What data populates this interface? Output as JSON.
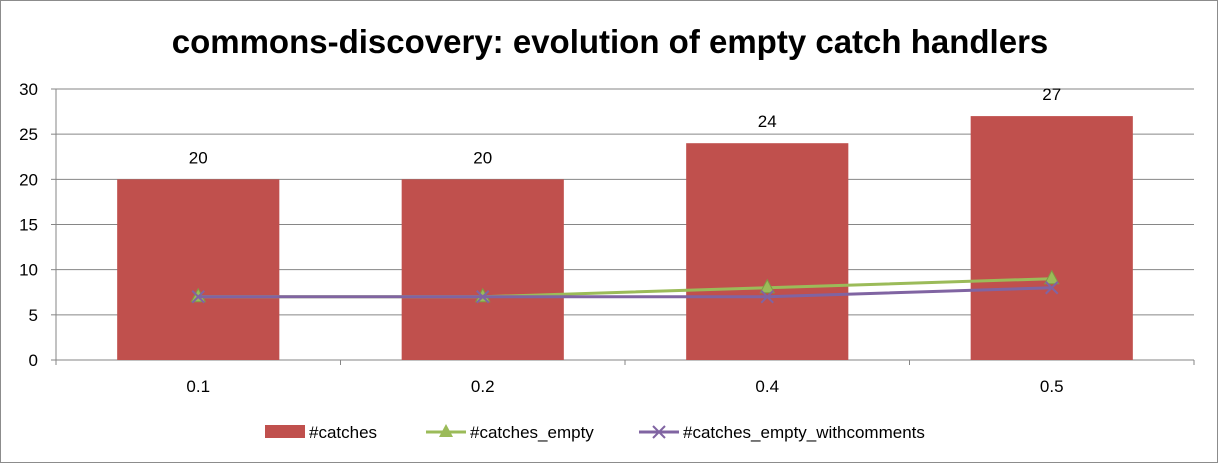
{
  "chart_data": {
    "type": "bar",
    "title": "commons-discovery: evolution of empty catch handlers",
    "xlabel": "",
    "ylabel": "",
    "categories": [
      "0.1",
      "0.2",
      "0.4",
      "0.5"
    ],
    "ylim": [
      0,
      30
    ],
    "yticks": [
      0,
      5,
      10,
      15,
      20,
      25,
      30
    ],
    "grid": true,
    "legend_position": "bottom",
    "series": [
      {
        "name": "#catches",
        "kind": "bar",
        "color": "#C0504D",
        "values": [
          20,
          20,
          24,
          27
        ],
        "show_labels": true
      },
      {
        "name": "#catches_empty",
        "kind": "line",
        "marker": "triangle",
        "color": "#9BBB59",
        "values": [
          7,
          7,
          8,
          9
        ]
      },
      {
        "name": "#catches_empty_withcomments",
        "kind": "line",
        "marker": "x",
        "color": "#8064A2",
        "values": [
          7,
          7,
          7,
          8
        ]
      }
    ]
  }
}
